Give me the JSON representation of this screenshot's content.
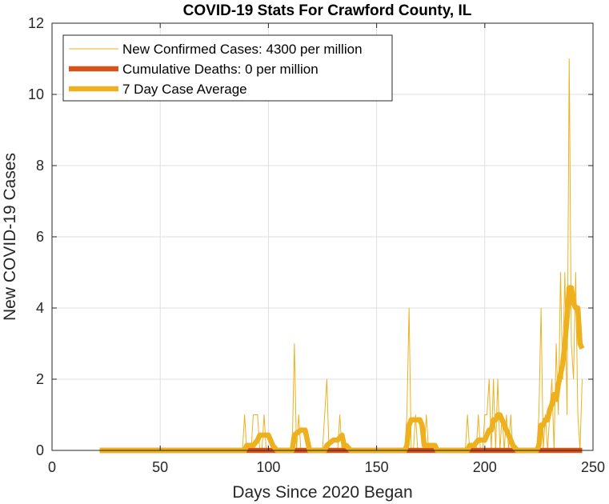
{
  "chart_data": {
    "type": "line",
    "title": "COVID-19 Stats For Crawford County, IL",
    "xlabel": "Days Since 2020 Began",
    "ylabel": "New COVID-19 Cases",
    "xlim": [
      0,
      250
    ],
    "ylim": [
      0,
      12
    ],
    "xticks": [
      0,
      50,
      100,
      150,
      200,
      250
    ],
    "yticks": [
      0,
      2,
      4,
      6,
      8,
      10,
      12
    ],
    "grid": true,
    "legend_position": "top-left",
    "series": [
      {
        "name": "New Confirmed Cases: 4300 per million",
        "color": "#EDB120",
        "style": "thin",
        "x": [
          22,
          88,
          89,
          90,
          91,
          92,
          93,
          94,
          95,
          96,
          97,
          98,
          99,
          100,
          101,
          102,
          103,
          104,
          110,
          111,
          112,
          113,
          114,
          115,
          116,
          117,
          118,
          125,
          126,
          127,
          128,
          129,
          130,
          131,
          132,
          133,
          134,
          135,
          136,
          137,
          162,
          163,
          164,
          165,
          166,
          167,
          168,
          169,
          170,
          171,
          172,
          173,
          174,
          175,
          176,
          177,
          178,
          191,
          192,
          193,
          194,
          195,
          196,
          197,
          198,
          199,
          200,
          201,
          202,
          203,
          204,
          205,
          206,
          207,
          208,
          209,
          210,
          211,
          212,
          213,
          214,
          215,
          224,
          225,
          226,
          227,
          228,
          229,
          230,
          231,
          232,
          233,
          234,
          235,
          236,
          237,
          238,
          239,
          240,
          241,
          242,
          243,
          244,
          245
        ],
        "values": [
          0,
          0,
          1,
          0,
          0,
          0,
          1,
          1,
          1,
          0,
          0,
          1,
          0,
          0,
          0,
          0,
          0,
          0,
          0,
          0,
          3,
          0,
          1,
          0,
          0,
          0,
          0,
          0,
          1,
          2,
          0,
          0,
          0,
          0,
          0,
          1,
          0,
          0,
          0,
          0,
          0,
          0,
          1,
          4,
          0,
          0,
          1,
          0,
          0,
          0,
          0,
          1,
          0,
          0,
          0,
          0,
          0,
          0,
          1,
          0,
          0,
          0,
          0,
          1,
          0,
          0,
          1,
          1,
          2,
          0,
          2,
          0,
          2,
          0,
          1,
          0,
          1,
          0,
          1,
          0,
          0,
          0,
          0,
          1,
          4,
          0,
          1,
          0,
          1,
          2,
          0,
          3,
          1,
          5,
          2,
          5,
          1,
          11,
          3,
          2,
          5,
          1,
          0,
          2
        ]
      },
      {
        "name": "Cumulative Deaths: 0 per million",
        "color": "#D95319",
        "style": "thick",
        "x": [
          22,
          245
        ],
        "values": [
          0,
          0
        ]
      },
      {
        "name": "7 Day Case Average",
        "color": "#EDB120",
        "style": "thick",
        "x": [
          22,
          89,
          90,
          93,
          95,
          96,
          99,
          100,
          101,
          102,
          104,
          111,
          112,
          115,
          116,
          117,
          119,
          126,
          127,
          130,
          131,
          132,
          134,
          135,
          136,
          138,
          163,
          164,
          165,
          166,
          169,
          170,
          171,
          172,
          173,
          177,
          178,
          180,
          192,
          193,
          195,
          197,
          198,
          200,
          202,
          203,
          204,
          205,
          206,
          207,
          208,
          209,
          210,
          212,
          213,
          215,
          224,
          225,
          226,
          227,
          228,
          229,
          230,
          231,
          232,
          233,
          234,
          235,
          236,
          237,
          238,
          239,
          240,
          241,
          242,
          243,
          244,
          245
        ],
        "values": [
          0,
          0,
          0.14,
          0.14,
          0.29,
          0.43,
          0.43,
          0.43,
          0.29,
          0.14,
          0,
          0,
          0.43,
          0.57,
          0.57,
          0.57,
          0,
          0,
          0.14,
          0.29,
          0.29,
          0.29,
          0.43,
          0.14,
          0.14,
          0,
          0,
          0.14,
          0.71,
          0.86,
          0.86,
          0.86,
          0.71,
          0.14,
          0.14,
          0.14,
          0,
          0,
          0,
          0.14,
          0.14,
          0.29,
          0.29,
          0.29,
          0.57,
          0.57,
          0.86,
          0.86,
          1.0,
          1.0,
          0.86,
          0.71,
          0.57,
          0.29,
          0.14,
          0,
          0,
          0.14,
          0.71,
          0.71,
          0.86,
          0.86,
          1.14,
          1.29,
          1.57,
          1.43,
          1.86,
          2.14,
          2.43,
          3.0,
          3.71,
          4.57,
          4.57,
          4.14,
          4.0,
          4.0,
          3.0,
          2.86
        ]
      }
    ]
  }
}
